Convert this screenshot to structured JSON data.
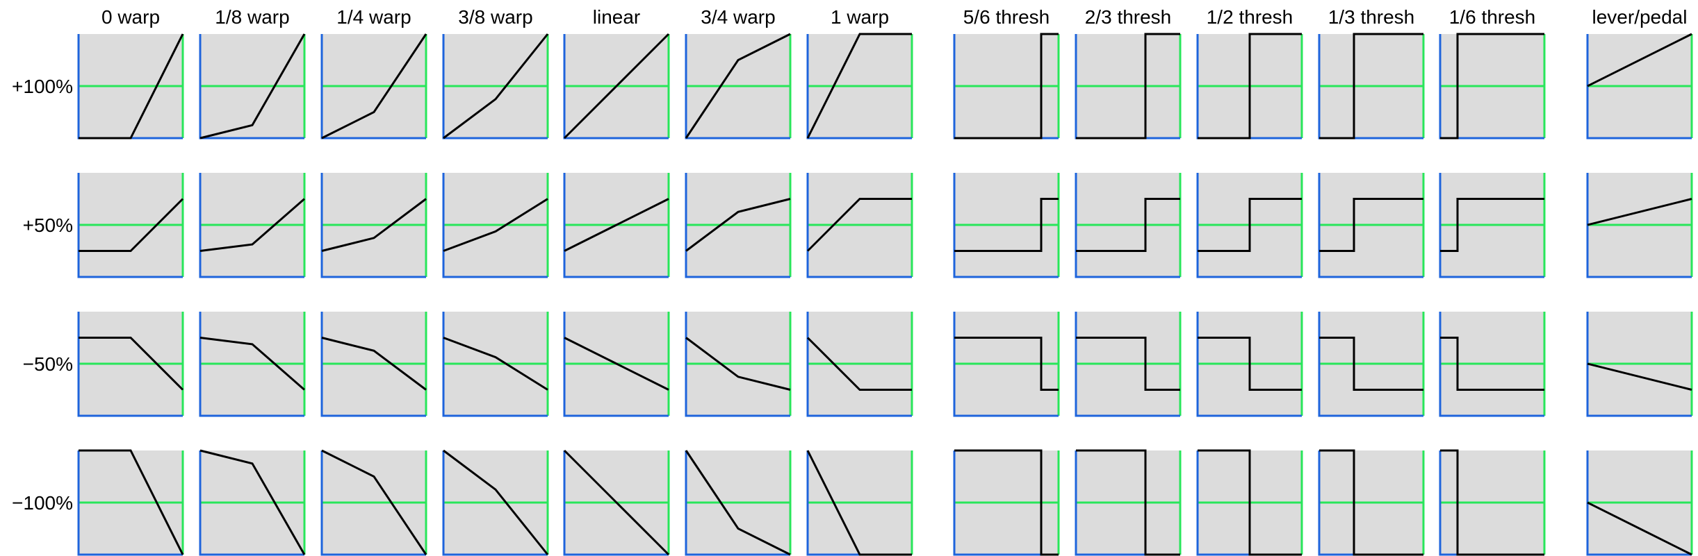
{
  "columns": [
    {
      "label": "0 warp",
      "kind": "warp",
      "k": 0
    },
    {
      "label": "1/8 warp",
      "kind": "warp",
      "k": 0.125
    },
    {
      "label": "1/4 warp",
      "kind": "warp",
      "k": 0.25
    },
    {
      "label": "3/8 warp",
      "kind": "warp",
      "k": 0.375
    },
    {
      "label": "linear",
      "kind": "warp",
      "k": 0.5
    },
    {
      "label": "3/4 warp",
      "kind": "warp",
      "k": 0.75
    },
    {
      "label": "1 warp",
      "kind": "warp",
      "k": 1
    },
    {
      "label": "5/6 thresh",
      "kind": "thresh",
      "t": 0.8333
    },
    {
      "label": "2/3 thresh",
      "kind": "thresh",
      "t": 0.6667
    },
    {
      "label": "1/2 thresh",
      "kind": "thresh",
      "t": 0.5
    },
    {
      "label": "1/3 thresh",
      "kind": "thresh",
      "t": 0.3333
    },
    {
      "label": "1/6 thresh",
      "kind": "thresh",
      "t": 0.1667
    },
    {
      "label": "lever/pedal",
      "kind": "lever"
    }
  ],
  "rows": [
    {
      "label": "+100%",
      "amount": 1
    },
    {
      "label": "+50%",
      "amount": 0.5
    },
    {
      "label": "−50%",
      "amount": -0.5
    },
    {
      "label": "−100%",
      "amount": -1
    }
  ],
  "colors": {
    "panel_fill": "#dcdcdc",
    "axis_left_bottom": "#1e64dc",
    "axis_right": "#28e65a",
    "zero_line": "#28e65a",
    "curve": "#000000"
  }
}
